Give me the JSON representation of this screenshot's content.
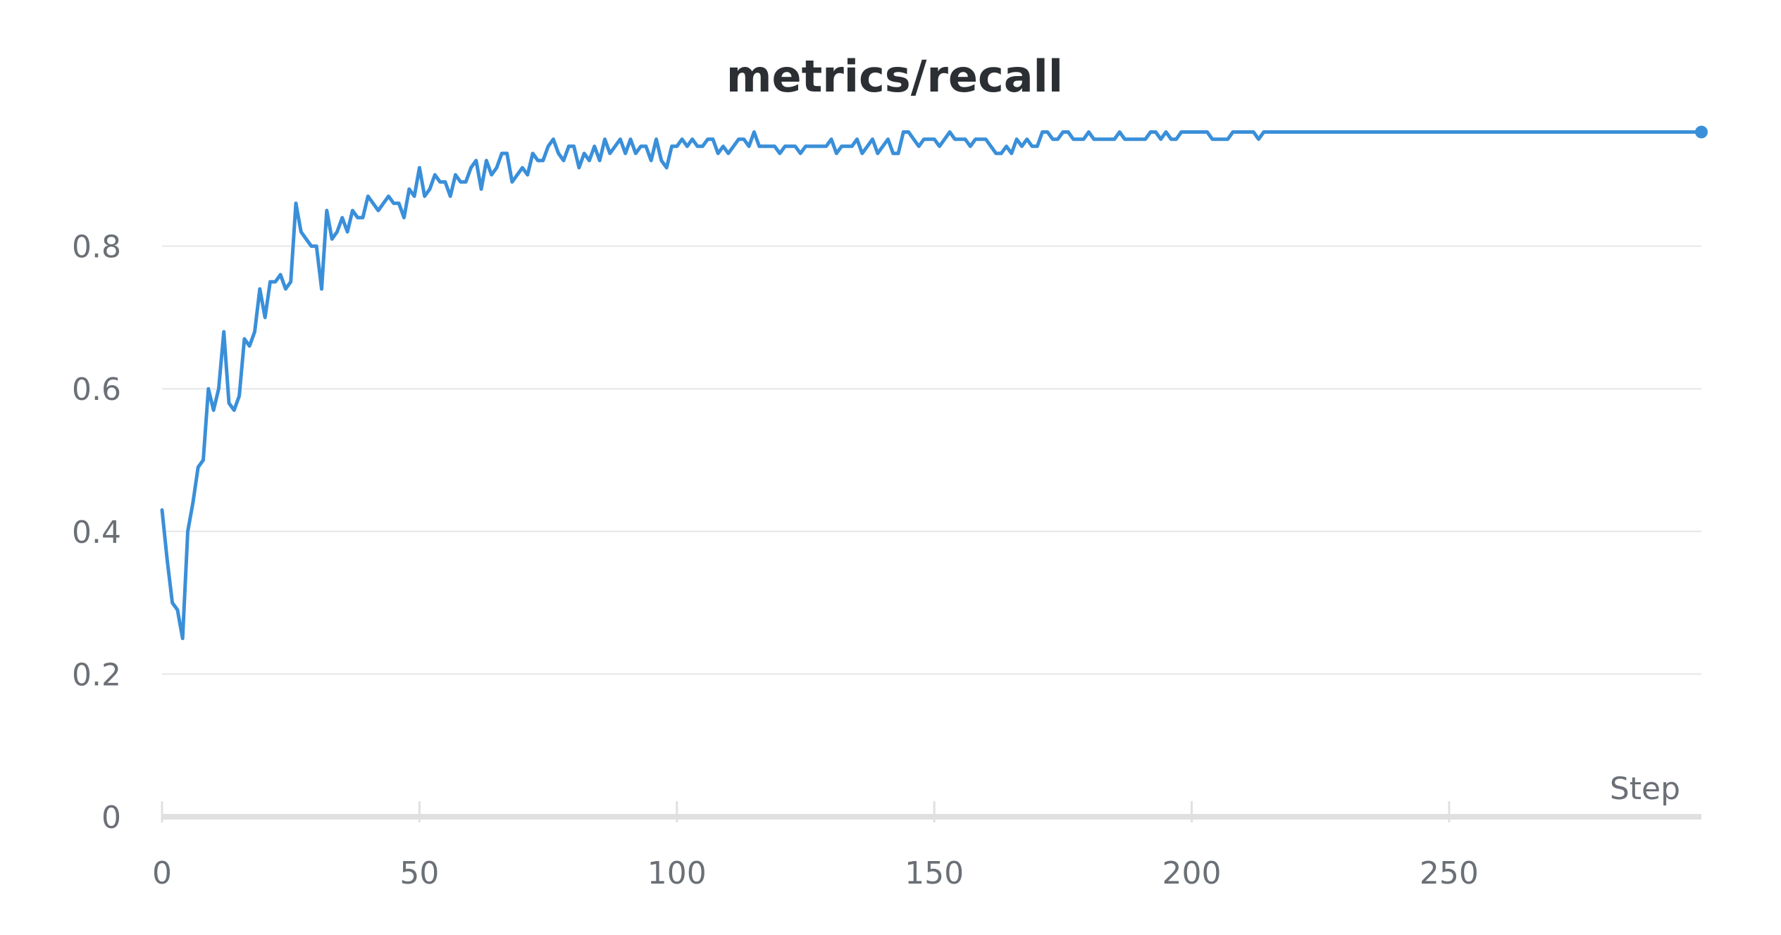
{
  "chart_data": {
    "type": "line",
    "title": "metrics/recall",
    "xlabel": "Step",
    "ylabel": "",
    "xlim": [
      0,
      299
    ],
    "ylim": [
      0,
      1
    ],
    "x_ticks": [
      0,
      50,
      100,
      150,
      200,
      250
    ],
    "x_tick_labels": [
      "0",
      "50",
      "100",
      "150",
      "200",
      "250"
    ],
    "y_ticks": [
      0,
      0.2,
      0.4,
      0.6,
      0.8
    ],
    "y_tick_labels": [
      "0",
      "0.2",
      "0.4",
      "0.6",
      "0.8"
    ],
    "grid": "horizontal",
    "legend": "none",
    "colors": {
      "line": "#3a8fd9",
      "grid": "#e6e6e6",
      "axis": "#e0e0e0",
      "tick_text": "#6b6f76",
      "title_text": "#2b2f33"
    },
    "series": [
      {
        "values": [
          0.43,
          0.36,
          0.3,
          0.29,
          0.25,
          0.4,
          0.44,
          0.49,
          0.5,
          0.6,
          0.57,
          0.6,
          0.68,
          0.58,
          0.57,
          0.59,
          0.67,
          0.66,
          0.68,
          0.74,
          0.7,
          0.75,
          0.75,
          0.76,
          0.74,
          0.75,
          0.86,
          0.82,
          0.81,
          0.8,
          0.8,
          0.74,
          0.85,
          0.81,
          0.82,
          0.84,
          0.82,
          0.85,
          0.84,
          0.84,
          0.87,
          0.86,
          0.85,
          0.86,
          0.87,
          0.86,
          0.86,
          0.84,
          0.88,
          0.87,
          0.91,
          0.87,
          0.88,
          0.9,
          0.89,
          0.89,
          0.87,
          0.9,
          0.89,
          0.89,
          0.91,
          0.92,
          0.88,
          0.92,
          0.9,
          0.91,
          0.93,
          0.93,
          0.89,
          0.9,
          0.91,
          0.9,
          0.93,
          0.92,
          0.92,
          0.94,
          0.95,
          0.93,
          0.92,
          0.94,
          0.94,
          0.91,
          0.93,
          0.92,
          0.94,
          0.92,
          0.95,
          0.93,
          0.94,
          0.95,
          0.93,
          0.95,
          0.93,
          0.94,
          0.94,
          0.92,
          0.95,
          0.92,
          0.91,
          0.94,
          0.94,
          0.95,
          0.94,
          0.95,
          0.94,
          0.94,
          0.95,
          0.95,
          0.93,
          0.94,
          0.93,
          0.94,
          0.95,
          0.95,
          0.94,
          0.96,
          0.94,
          0.94,
          0.94,
          0.94,
          0.93,
          0.94,
          0.94,
          0.94,
          0.93,
          0.94,
          0.94,
          0.94,
          0.94,
          0.94,
          0.95,
          0.93,
          0.94,
          0.94,
          0.94,
          0.95,
          0.93,
          0.94,
          0.95,
          0.93,
          0.94,
          0.95,
          0.93,
          0.93,
          0.96,
          0.96,
          0.95,
          0.94,
          0.95,
          0.95,
          0.95,
          0.94,
          0.95,
          0.96,
          0.95,
          0.95,
          0.95,
          0.94,
          0.95,
          0.95,
          0.95,
          0.94,
          0.93,
          0.93,
          0.94,
          0.93,
          0.95,
          0.94,
          0.95,
          0.94,
          0.94,
          0.96,
          0.96,
          0.95,
          0.95,
          0.96,
          0.96,
          0.95,
          0.95,
          0.95,
          0.96,
          0.95,
          0.95,
          0.95,
          0.95,
          0.95,
          0.96,
          0.95,
          0.95,
          0.95,
          0.95,
          0.95,
          0.96,
          0.96,
          0.95,
          0.96,
          0.95,
          0.95,
          0.96,
          0.96,
          0.96,
          0.96,
          0.96,
          0.96,
          0.95,
          0.95,
          0.95,
          0.95,
          0.96,
          0.96,
          0.96,
          0.96,
          0.96,
          0.95,
          0.96,
          0.96,
          0.96,
          0.96,
          0.96,
          0.96,
          0.96,
          0.96,
          0.96,
          0.96,
          0.96,
          0.96,
          0.96,
          0.96,
          0.96,
          0.96,
          0.96,
          0.96,
          0.96,
          0.96,
          0.96,
          0.96,
          0.96,
          0.96,
          0.96,
          0.96,
          0.96,
          0.96,
          0.96,
          0.96,
          0.96,
          0.96,
          0.96,
          0.96,
          0.96,
          0.96,
          0.96,
          0.96,
          0.96,
          0.96,
          0.96,
          0.96,
          0.96,
          0.96,
          0.96,
          0.96,
          0.96,
          0.96,
          0.96,
          0.96,
          0.96,
          0.96,
          0.96,
          0.96,
          0.96,
          0.96,
          0.96,
          0.96,
          0.96,
          0.96,
          0.96,
          0.96,
          0.96,
          0.96,
          0.96,
          0.96,
          0.96,
          0.96,
          0.96,
          0.96,
          0.96,
          0.96,
          0.96,
          0.96,
          0.96,
          0.96,
          0.96,
          0.96,
          0.96,
          0.96,
          0.96,
          0.96,
          0.96,
          0.96,
          0.96,
          0.96
        ]
      }
    ]
  }
}
